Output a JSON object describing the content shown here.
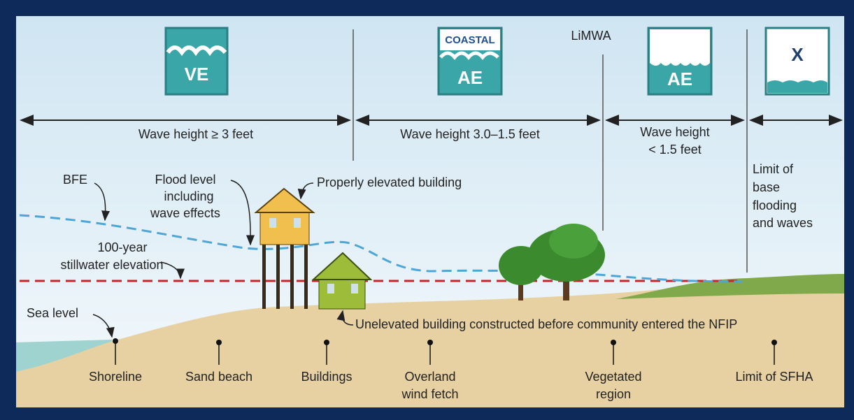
{
  "zones": [
    {
      "badge": [
        "VE"
      ],
      "label": [
        "Wave height ≥ 3 feet"
      ]
    },
    {
      "badge": [
        "COASTAL",
        "AE"
      ],
      "label": [
        "Wave height 3.0–1.5 feet"
      ]
    },
    {
      "badge": [
        "AE"
      ],
      "label": [
        "Wave height",
        "< 1.5 feet"
      ]
    },
    {
      "badge": [
        "X"
      ],
      "label": [
        "Limit of",
        "base",
        "flooding",
        "and waves"
      ]
    }
  ],
  "limwa": "LiMWA",
  "annotations": {
    "bfe": [
      "BFE"
    ],
    "flood_level": [
      "Flood level",
      "including",
      "wave effects"
    ],
    "stillwater": [
      "100-year",
      "stillwater elevation"
    ],
    "elevated": [
      "Properly elevated building"
    ],
    "sea_level": [
      "Sea level"
    ],
    "unelevated": [
      "Unelevated building constructed before community entered the NFIP"
    ]
  },
  "locations": [
    [
      "Shoreline"
    ],
    [
      "Sand beach"
    ],
    [
      "Buildings"
    ],
    [
      "Overland",
      "wind fetch"
    ],
    [
      "Vegetated",
      "region"
    ],
    [
      "Limit of SFHA"
    ]
  ]
}
